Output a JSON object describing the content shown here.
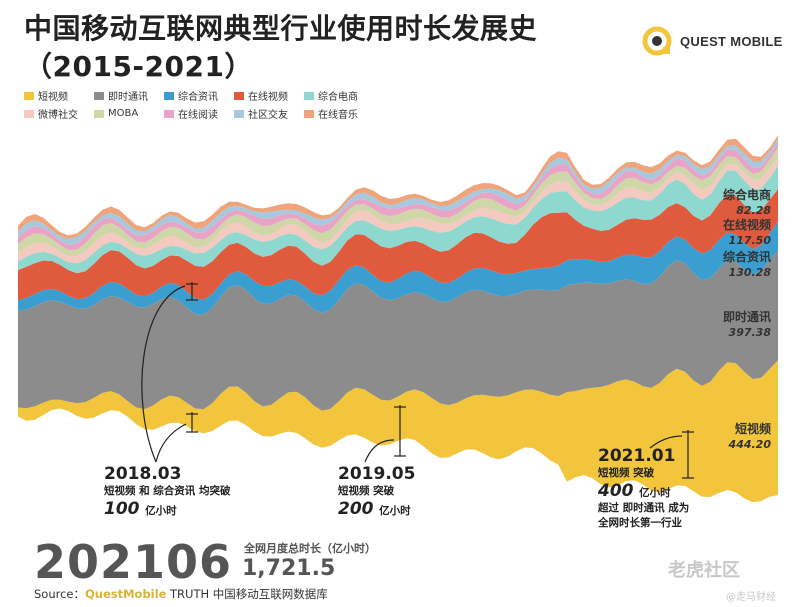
{
  "title_line1": "中国移动互联网典型行业使用时长发展史",
  "title_line2": "（2015-2021）",
  "logo_text": "QUEST MOBILE",
  "legend": [
    {
      "label": "短视频",
      "color": "#f2c53d"
    },
    {
      "label": "即时通讯",
      "color": "#8c8c8c"
    },
    {
      "label": "综合资讯",
      "color": "#3a9fd0"
    },
    {
      "label": "在线视频",
      "color": "#e05a3e"
    },
    {
      "label": "综合电商",
      "color": "#8fd8cf"
    },
    {
      "label": "微博社交",
      "color": "#f4c9c0"
    },
    {
      "label": "MOBA",
      "color": "#cfd6a8"
    },
    {
      "label": "在线阅读",
      "color": "#e9a3c6"
    },
    {
      "label": "社区交友",
      "color": "#a7c9dd"
    },
    {
      "label": "在线音乐",
      "color": "#f0a47c"
    }
  ],
  "right_labels": [
    {
      "name": "综合电商",
      "value": "82.28"
    },
    {
      "name": "在线视频",
      "value": "117.50"
    },
    {
      "name": "综合资讯",
      "value": "130.28"
    },
    {
      "name": "即时通讯",
      "value": "397.38"
    },
    {
      "name": "短视频",
      "value": "444.20"
    }
  ],
  "annotations": [
    {
      "date": "2018.03",
      "desc": "短视频 和 综合资讯 均突破",
      "value": "100",
      "unit": "亿小时"
    },
    {
      "date": "2019.05",
      "desc": "短视频 突破",
      "value": "200",
      "unit": "亿小时"
    },
    {
      "date": "2021.01",
      "desc": "短视频 突破",
      "value": "400",
      "unit": "亿小时",
      "desc2": "超过 即时通讯 成为",
      "desc3": "全网时长第一行业"
    }
  ],
  "footer": {
    "period": "202106",
    "total_label": "全网月度总时长（亿小时）",
    "total_value": "1,721.5",
    "source_prefix": "Source：",
    "source_brand": "QuestMobile",
    "source_rest": " TRUTH 中国移动互联网数据库"
  },
  "watermark": {
    "main": "老虎社区",
    "sub": "@走马财经"
  },
  "chart_data": {
    "type": "area",
    "title": "中国移动互联网典型行业使用时长发展史（2015-2021）",
    "x_range": [
      "2015",
      "2021-06"
    ],
    "series": [
      {
        "name": "短视频",
        "values": [
          18,
          100,
          200,
          400,
          444.2
        ]
      },
      {
        "name": "即时通讯",
        "values": [
          300,
          330,
          360,
          390,
          397.38
        ]
      },
      {
        "name": "综合资讯",
        "values": [
          60,
          100,
          120,
          130,
          130.28
        ]
      },
      {
        "name": "在线视频",
        "values": [
          90,
          105,
          110,
          115,
          117.5
        ]
      },
      {
        "name": "综合电商",
        "values": [
          40,
          55,
          65,
          78,
          82.28
        ]
      }
    ],
    "x": [
      "2015",
      "2018.03",
      "2019.05",
      "2021.01",
      "202106"
    ]
  }
}
